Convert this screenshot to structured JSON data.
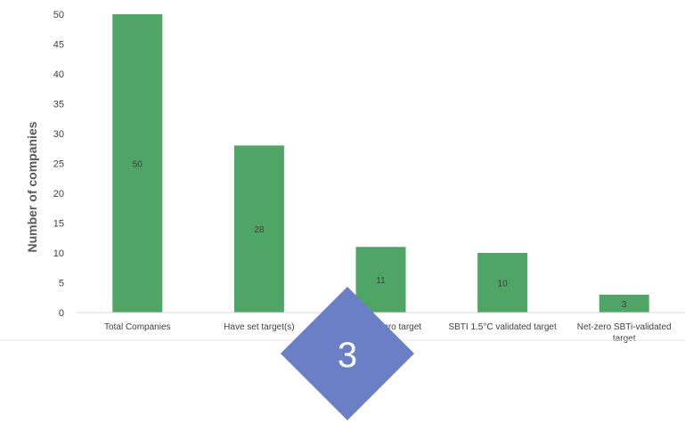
{
  "chart_data": {
    "type": "bar",
    "ylabel": "Number of companies",
    "ylim": [
      0,
      50
    ],
    "yticks": [
      0,
      5,
      10,
      15,
      20,
      25,
      30,
      35,
      40,
      45,
      50
    ],
    "categories": [
      [
        "Total Companies"
      ],
      [
        "Have set target(s)"
      ],
      [
        "Have net-zero target"
      ],
      [
        "SBTI 1.5°C validated target"
      ],
      [
        "Net-zero SBTi-validated",
        "target"
      ]
    ],
    "values": [
      50,
      28,
      11,
      10,
      3
    ],
    "bar_color": "#4fa565",
    "data_labels": true,
    "grid": false,
    "legend": "none"
  },
  "badge": {
    "label": "3",
    "color": "#6b7fc6"
  }
}
